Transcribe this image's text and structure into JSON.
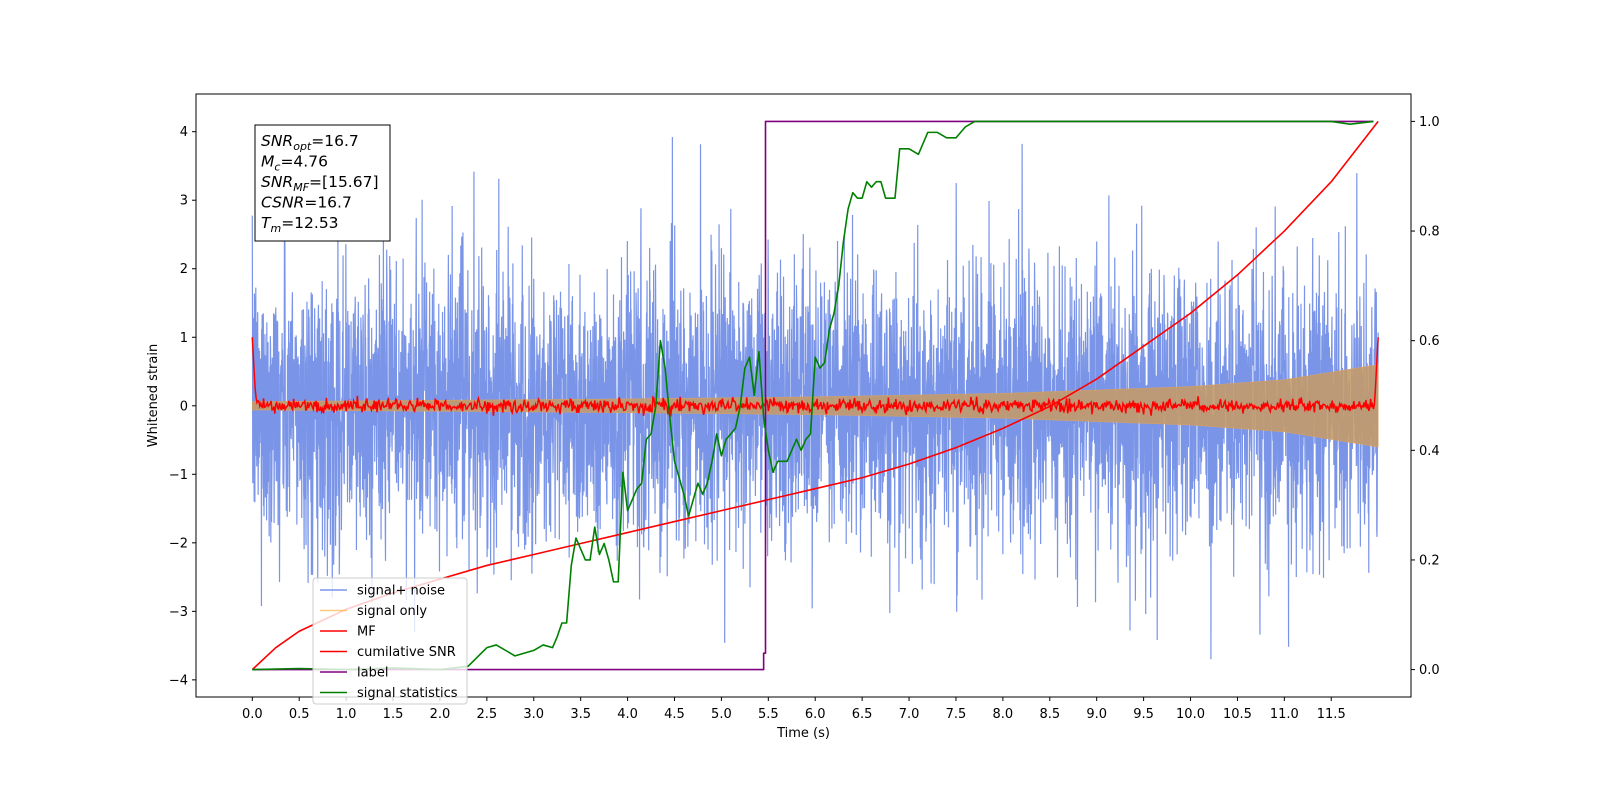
{
  "chart_data": {
    "type": "line",
    "xlabel": "Time (s)",
    "ylabel_left": "Whitened strain",
    "ylabel_right": "",
    "xlim": [
      -0.6,
      12.35
    ],
    "ylim_left": [
      -4.25,
      4.55
    ],
    "ylim_right": [
      -0.05,
      1.05
    ],
    "x_ticks": [
      0.0,
      0.5,
      1.0,
      1.5,
      2.0,
      2.5,
      3.0,
      3.5,
      4.0,
      4.5,
      5.0,
      5.5,
      6.0,
      6.5,
      7.0,
      7.5,
      8.0,
      8.5,
      9.0,
      9.5,
      10.0,
      10.5,
      11.0,
      11.5
    ],
    "x_tick_labels": [
      "0.0",
      "0.5",
      "1.0",
      "1.5",
      "2.0",
      "2.5",
      "3.0",
      "3.5",
      "4.0",
      "4.5",
      "5.0",
      "5.5",
      "6.0",
      "6.5",
      "7.0",
      "7.5",
      "8.0",
      "8.5",
      "9.0",
      "9.5",
      "10.0",
      "10.5",
      "11.0",
      "11.5"
    ],
    "y_ticks_left": [
      4,
      3,
      2,
      1,
      0,
      -1,
      -2,
      -3,
      -4
    ],
    "y_tick_labels_left": [
      "4",
      "3",
      "2",
      "1",
      "0",
      "−1",
      "−2",
      "−3",
      "−4"
    ],
    "y_ticks_right": [
      1.0,
      0.8,
      0.6,
      0.4,
      0.2,
      0.0
    ],
    "y_tick_labels_right": [
      "1.0",
      "0.8",
      "0.6",
      "0.4",
      "0.2",
      "0.0"
    ],
    "grid": false,
    "legend_position": "lower-left",
    "info_box": [
      {
        "sym": "SNR",
        "sub": "opt",
        "val": "=16.7"
      },
      {
        "sym": "M",
        "sub": "c",
        "val": "=4.76"
      },
      {
        "sym": "SNR",
        "sub": "MF",
        "val": "=[15.67]"
      },
      {
        "sym": "CSNR",
        "sub": "",
        "val": "=16.7"
      },
      {
        "sym": "T",
        "sub": "m",
        "val": "=12.53"
      }
    ],
    "series": [
      {
        "name": "signal+ noise",
        "color": "#6b8ae6",
        "axis": "left",
        "x_range": [
          0.0,
          12.0
        ],
        "noise_std": 1.0,
        "min_peak": -3.7,
        "max_peak": 4.15
      },
      {
        "name": "signal only",
        "color": "#ffb347",
        "axis": "left",
        "envelope": {
          "x": [
            0.0,
            2.0,
            4.0,
            6.0,
            8.0,
            10.0,
            11.0,
            12.0
          ],
          "amp": [
            0.06,
            0.08,
            0.1,
            0.13,
            0.18,
            0.28,
            0.38,
            0.6
          ]
        }
      },
      {
        "name": "MF",
        "color": "#ff0000",
        "axis": "left",
        "x_range": [
          0.0,
          12.0
        ],
        "edge_value": 1.0,
        "noise_std": 0.05
      },
      {
        "name": "cumilative SNR",
        "color": "#ff0000",
        "axis": "right",
        "x": [
          0.0,
          0.25,
          0.5,
          1.0,
          1.5,
          2.0,
          2.5,
          3.0,
          3.5,
          4.0,
          4.5,
          5.0,
          5.5,
          6.0,
          6.5,
          7.0,
          7.5,
          8.0,
          8.5,
          9.0,
          9.5,
          10.0,
          10.5,
          11.0,
          11.5,
          12.0
        ],
        "y": [
          0.0,
          0.04,
          0.07,
          0.11,
          0.14,
          0.165,
          0.19,
          0.21,
          0.23,
          0.25,
          0.27,
          0.29,
          0.31,
          0.33,
          0.35,
          0.375,
          0.405,
          0.44,
          0.48,
          0.53,
          0.59,
          0.65,
          0.72,
          0.8,
          0.89,
          1.0
        ]
      },
      {
        "name": "label",
        "color": "#800080",
        "axis": "right",
        "x": [
          0.0,
          5.45,
          5.45,
          5.47,
          5.47,
          11.95
        ],
        "y": [
          0.0,
          0.0,
          0.03,
          0.03,
          1.0,
          1.0
        ]
      },
      {
        "name": "signal statistics",
        "color": "#008000",
        "axis": "right",
        "x": [
          0.0,
          0.5,
          1.0,
          1.5,
          2.0,
          2.3,
          2.5,
          2.6,
          2.8,
          2.9,
          3.0,
          3.1,
          3.2,
          3.25,
          3.3,
          3.35,
          3.4,
          3.45,
          3.5,
          3.55,
          3.6,
          3.65,
          3.7,
          3.75,
          3.8,
          3.85,
          3.9,
          3.95,
          4.0,
          4.05,
          4.1,
          4.15,
          4.2,
          4.25,
          4.3,
          4.35,
          4.4,
          4.45,
          4.5,
          4.55,
          4.6,
          4.65,
          4.7,
          4.75,
          4.8,
          4.85,
          4.9,
          4.95,
          5.0,
          5.05,
          5.1,
          5.15,
          5.2,
          5.25,
          5.3,
          5.35,
          5.4,
          5.45,
          5.5,
          5.55,
          5.6,
          5.65,
          5.7,
          5.75,
          5.8,
          5.85,
          5.9,
          5.95,
          6.0,
          6.05,
          6.1,
          6.15,
          6.2,
          6.25,
          6.3,
          6.35,
          6.4,
          6.45,
          6.5,
          6.55,
          6.6,
          6.65,
          6.7,
          6.75,
          6.8,
          6.85,
          6.9,
          7.0,
          7.1,
          7.2,
          7.3,
          7.4,
          7.5,
          7.6,
          7.7,
          7.8,
          7.9,
          8.0,
          8.5,
          9.0,
          9.5,
          10.0,
          10.5,
          11.0,
          11.5,
          11.7,
          11.95
        ],
        "y": [
          0.0,
          0.002,
          0.0,
          0.003,
          0.0,
          0.006,
          0.04,
          0.045,
          0.025,
          0.03,
          0.035,
          0.045,
          0.04,
          0.06,
          0.085,
          0.085,
          0.19,
          0.24,
          0.22,
          0.2,
          0.2,
          0.26,
          0.21,
          0.23,
          0.2,
          0.16,
          0.16,
          0.36,
          0.29,
          0.31,
          0.33,
          0.34,
          0.42,
          0.43,
          0.48,
          0.6,
          0.55,
          0.46,
          0.38,
          0.35,
          0.32,
          0.28,
          0.31,
          0.34,
          0.32,
          0.34,
          0.38,
          0.43,
          0.39,
          0.42,
          0.43,
          0.44,
          0.48,
          0.55,
          0.57,
          0.5,
          0.58,
          0.46,
          0.4,
          0.36,
          0.38,
          0.38,
          0.38,
          0.4,
          0.42,
          0.4,
          0.42,
          0.43,
          0.57,
          0.55,
          0.56,
          0.62,
          0.65,
          0.7,
          0.78,
          0.84,
          0.87,
          0.86,
          0.86,
          0.89,
          0.88,
          0.89,
          0.89,
          0.86,
          0.86,
          0.86,
          0.95,
          0.95,
          0.94,
          0.98,
          0.98,
          0.97,
          0.97,
          0.99,
          1.0,
          1.0,
          1.0,
          1.0,
          1.0,
          1.0,
          1.0,
          1.0,
          1.0,
          1.0,
          1.0,
          0.995,
          1.0
        ]
      }
    ]
  }
}
